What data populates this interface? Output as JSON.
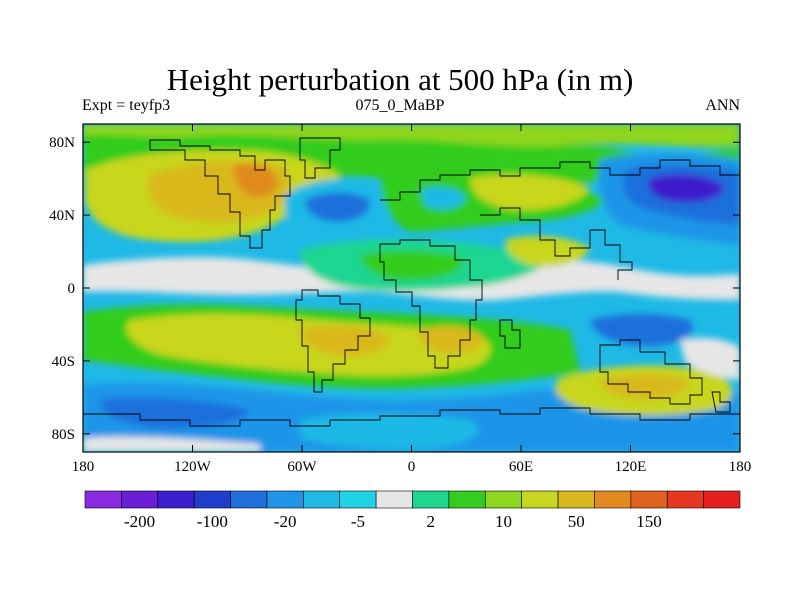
{
  "title": "Height perturbation at 500 hPa (in m)",
  "subtitle_left": "Expt = teyfp3",
  "subtitle_center": "075_0_MaBP",
  "subtitle_right": "ANN",
  "map": {
    "projection": "cylindrical-equidistant",
    "lon_range": [
      -180,
      180
    ],
    "lat_range": [
      -90,
      90
    ],
    "x_ticks": [
      {
        "value": -180,
        "label": "180"
      },
      {
        "value": -120,
        "label": "120W"
      },
      {
        "value": -60,
        "label": "60W"
      },
      {
        "value": 0,
        "label": "0"
      },
      {
        "value": 60,
        "label": "60E"
      },
      {
        "value": 120,
        "label": "120E"
      },
      {
        "value": 180,
        "label": "180"
      }
    ],
    "y_ticks": [
      {
        "value": 80,
        "label": "80N"
      },
      {
        "value": 40,
        "label": "40N"
      },
      {
        "value": 0,
        "label": "0"
      },
      {
        "value": -40,
        "label": "40S"
      },
      {
        "value": -80,
        "label": "80S"
      }
    ],
    "fill": "filled-contours",
    "overlay": "coastline-outline"
  },
  "colorbar": {
    "orientation": "horizontal",
    "colors": [
      "#8a2be2",
      "#6a1fd6",
      "#3c1fcc",
      "#1f3ecc",
      "#1f6fdb",
      "#1f95e8",
      "#1fb9e6",
      "#1fd2e6",
      "#e6e6e6",
      "#1fd691",
      "#33cc1f",
      "#8fd61f",
      "#c8d61f",
      "#d9b81f",
      "#e08a1f",
      "#e0621f",
      "#e6381f",
      "#e61f1f"
    ],
    "labels": [
      {
        "after_box": 1,
        "text": "-200"
      },
      {
        "after_box": 3,
        "text": "-100"
      },
      {
        "after_box": 5,
        "text": "-20"
      },
      {
        "after_box": 7,
        "text": "-5"
      },
      {
        "after_box": 9,
        "text": "2"
      },
      {
        "after_box": 11,
        "text": "10"
      },
      {
        "after_box": 13,
        "text": "50"
      },
      {
        "after_box": 15,
        "text": "150"
      }
    ]
  }
}
